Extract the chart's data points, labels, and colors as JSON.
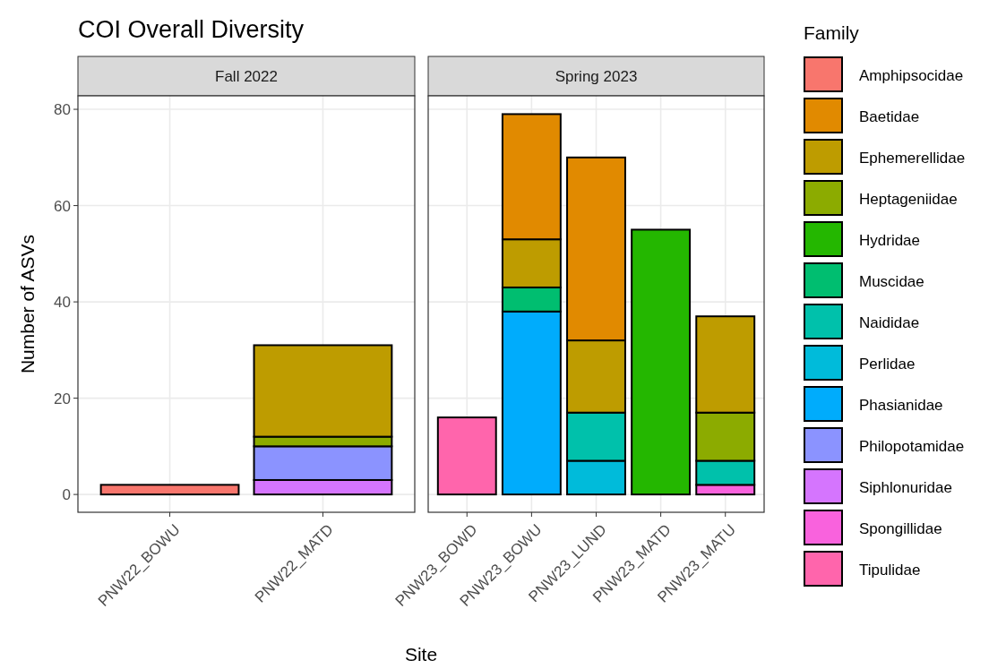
{
  "chart_data": [
    {
      "type": "bar",
      "title": "COI Overall Diversity",
      "subtitle": "Fall 2022",
      "ylabel": "Number of ASVs",
      "stacked": true,
      "grid": true,
      "categories": [
        "PNW22_BOWU",
        "PNW22_MATD"
      ],
      "ylim": [
        -3.7,
        82.8
      ],
      "yticks": [
        0,
        20,
        40,
        60,
        80
      ],
      "series": [
        {
          "color": "#d575fe",
          "values": [
            null,
            3
          ]
        },
        {
          "color": "#8b93ff",
          "values": [
            null,
            7
          ]
        },
        {
          "color": "#8cab00",
          "values": [
            null,
            2
          ]
        },
        {
          "color": "#be9c00",
          "values": [
            null,
            19
          ]
        },
        {
          "color": "#f8766d",
          "values": [
            2,
            null
          ]
        }
      ]
    },
    {
      "type": "bar",
      "subtitle": "Spring 2023",
      "xlabel": "Site",
      "legend_title": "Family",
      "stacked": true,
      "grid": true,
      "legend": "right",
      "tick_labels": "x",
      "categories": [
        "PNW23_BOWD",
        "PNW23_BOWU",
        "PNW23_LUND",
        "PNW23_MATD",
        "PNW23_MATU"
      ],
      "ylim": [
        -3.7,
        82.8
      ],
      "yticks": [
        0,
        20,
        40,
        60,
        80
      ],
      "series": [
        {
          "name": "Tipulidae",
          "color": "#ff65ac",
          "values": [
            16,
            null,
            null,
            null,
            null
          ]
        },
        {
          "name": "Spongillidae",
          "color": "#f962dd",
          "values": [
            null,
            null,
            null,
            null,
            2
          ]
        },
        {
          "name": "Siphlonuridae",
          "color": "#d575fe",
          "values": [
            null,
            null,
            null,
            null,
            null
          ]
        },
        {
          "name": "Philopotamidae",
          "color": "#8b93ff",
          "values": [
            null,
            null,
            null,
            null,
            null
          ]
        },
        {
          "name": "Phasianidae",
          "color": "#00acfc",
          "values": [
            null,
            38,
            null,
            null,
            null
          ]
        },
        {
          "name": "Perlidae",
          "color": "#00bbda",
          "values": [
            null,
            null,
            7,
            null,
            null
          ]
        },
        {
          "name": "Naididae",
          "color": "#00c1ab",
          "values": [
            null,
            null,
            10,
            null,
            5
          ]
        },
        {
          "name": "Muscidae",
          "color": "#00be70",
          "values": [
            null,
            5,
            null,
            null,
            null
          ]
        },
        {
          "name": "Hydridae",
          "color": "#24b700",
          "values": [
            null,
            null,
            null,
            55,
            null
          ]
        },
        {
          "name": "Heptageniidae",
          "color": "#8cab00",
          "values": [
            null,
            null,
            null,
            null,
            10
          ]
        },
        {
          "name": "Ephemerellidae",
          "color": "#be9c00",
          "values": [
            null,
            10,
            15,
            null,
            20
          ]
        },
        {
          "name": "Baetidae",
          "color": "#e18a00",
          "values": [
            null,
            26,
            38,
            null,
            null
          ]
        },
        {
          "name": "Amphipsocidae",
          "color": "#f8766d",
          "values": [
            null,
            null,
            null,
            null,
            null
          ]
        }
      ]
    }
  ]
}
